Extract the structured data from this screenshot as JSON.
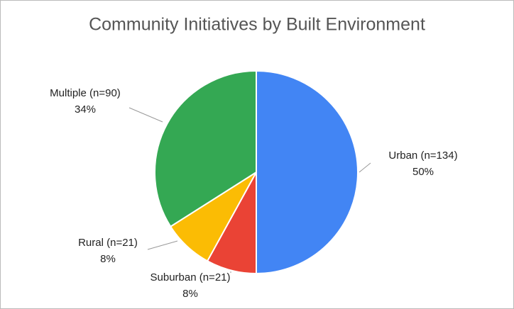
{
  "chart_data": {
    "type": "pie",
    "title": "Community Initiatives by Built Environment",
    "categories": [
      "Urban (n=134)",
      "Suburban (n=21)",
      "Rural (n=21)",
      "Multiple (n=90)"
    ],
    "values": [
      50,
      8,
      8,
      34
    ],
    "value_labels": [
      "50%",
      "8%",
      "8%",
      "34%"
    ],
    "colors": [
      "#4285f4",
      "#ea4335",
      "#fbbc04",
      "#34a853"
    ]
  }
}
